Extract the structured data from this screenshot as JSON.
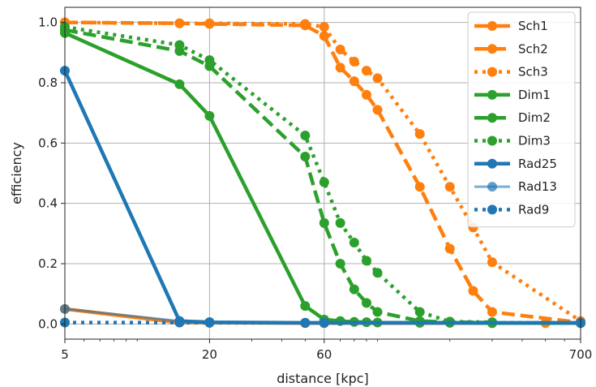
{
  "chart_data": {
    "type": "line",
    "xlabel": "distance [kpc]",
    "ylabel": "efficiency",
    "x_scale": "log",
    "xlim": [
      5,
      700
    ],
    "ylim": [
      -0.05,
      1.05
    ],
    "x_ticks": [
      5,
      20,
      60,
      700
    ],
    "x_tick_labels": [
      "5",
      "20",
      "60",
      "700"
    ],
    "y_ticks": [
      0.0,
      0.2,
      0.4,
      0.6,
      0.8,
      1.0
    ],
    "y_tick_labels": [
      "0.0",
      "0.2",
      "0.4",
      "0.6",
      "0.8",
      "1.0"
    ],
    "grid": true,
    "legend_position": "top-right",
    "series": [
      {
        "name": "Sch1",
        "color": "#ff7f0e",
        "style": "solid",
        "x": [
          5,
          15,
          20,
          50,
          60,
          300,
          500,
          700
        ],
        "y": [
          0.05,
          0.005,
          0.005,
          0.003,
          0.003,
          0.003,
          0.003,
          0.003
        ]
      },
      {
        "name": "Sch2",
        "color": "#ff7f0e",
        "style": "dashed",
        "x": [
          5,
          15,
          20,
          50,
          60,
          70,
          80,
          90,
          100,
          150,
          200,
          250,
          300,
          700
        ],
        "y": [
          1.0,
          0.997,
          0.995,
          0.99,
          0.955,
          0.85,
          0.805,
          0.76,
          0.71,
          0.455,
          0.25,
          0.11,
          0.04,
          0.005
        ]
      },
      {
        "name": "Sch3",
        "color": "#ff7f0e",
        "style": "dotted",
        "x": [
          5,
          15,
          20,
          50,
          60,
          70,
          80,
          90,
          100,
          150,
          200,
          250,
          300,
          700
        ],
        "y": [
          1.0,
          0.997,
          0.997,
          0.995,
          0.985,
          0.91,
          0.87,
          0.84,
          0.815,
          0.63,
          0.455,
          0.32,
          0.205,
          0.01
        ]
      },
      {
        "name": "Dim1",
        "color": "#2ca02c",
        "style": "solid",
        "x": [
          5,
          15,
          20,
          50,
          60,
          70,
          80,
          90,
          100,
          150,
          200,
          300,
          700
        ],
        "y": [
          0.965,
          0.795,
          0.69,
          0.06,
          0.015,
          0.01,
          0.007,
          0.006,
          0.005,
          0.004,
          0.004,
          0.003,
          0.003
        ]
      },
      {
        "name": "Dim2",
        "color": "#2ca02c",
        "style": "dashed",
        "x": [
          5,
          15,
          20,
          50,
          60,
          70,
          80,
          90,
          100,
          150,
          200,
          300
        ],
        "y": [
          0.975,
          0.905,
          0.855,
          0.555,
          0.335,
          0.2,
          0.115,
          0.07,
          0.04,
          0.01,
          0.006,
          0.005
        ]
      },
      {
        "name": "Dim3",
        "color": "#2ca02c",
        "style": "dotted",
        "x": [
          5,
          15,
          20,
          50,
          60,
          70,
          80,
          90,
          100,
          150,
          200,
          300
        ],
        "y": [
          0.985,
          0.925,
          0.875,
          0.625,
          0.47,
          0.335,
          0.27,
          0.21,
          0.17,
          0.04,
          0.008,
          0.006
        ]
      },
      {
        "name": "Rad25",
        "color": "#1f77b4",
        "style": "solid",
        "x": [
          5,
          15,
          20,
          50,
          60,
          700
        ],
        "y": [
          0.84,
          0.01,
          0.006,
          0.004,
          0.004,
          0.004
        ]
      },
      {
        "name": "Rad13",
        "color": "#1f77b4",
        "style": "solid-light",
        "x": [
          5,
          15,
          20,
          50,
          60,
          700
        ],
        "y": [
          0.05,
          0.01,
          0.006,
          0.004,
          0.004,
          0.004
        ]
      },
      {
        "name": "Rad9",
        "color": "#1f77b4",
        "style": "dotted",
        "x": [
          5,
          15,
          20,
          50,
          60,
          700
        ],
        "y": [
          0.005,
          0.005,
          0.004,
          0.004,
          0.004,
          0.004
        ]
      }
    ]
  }
}
